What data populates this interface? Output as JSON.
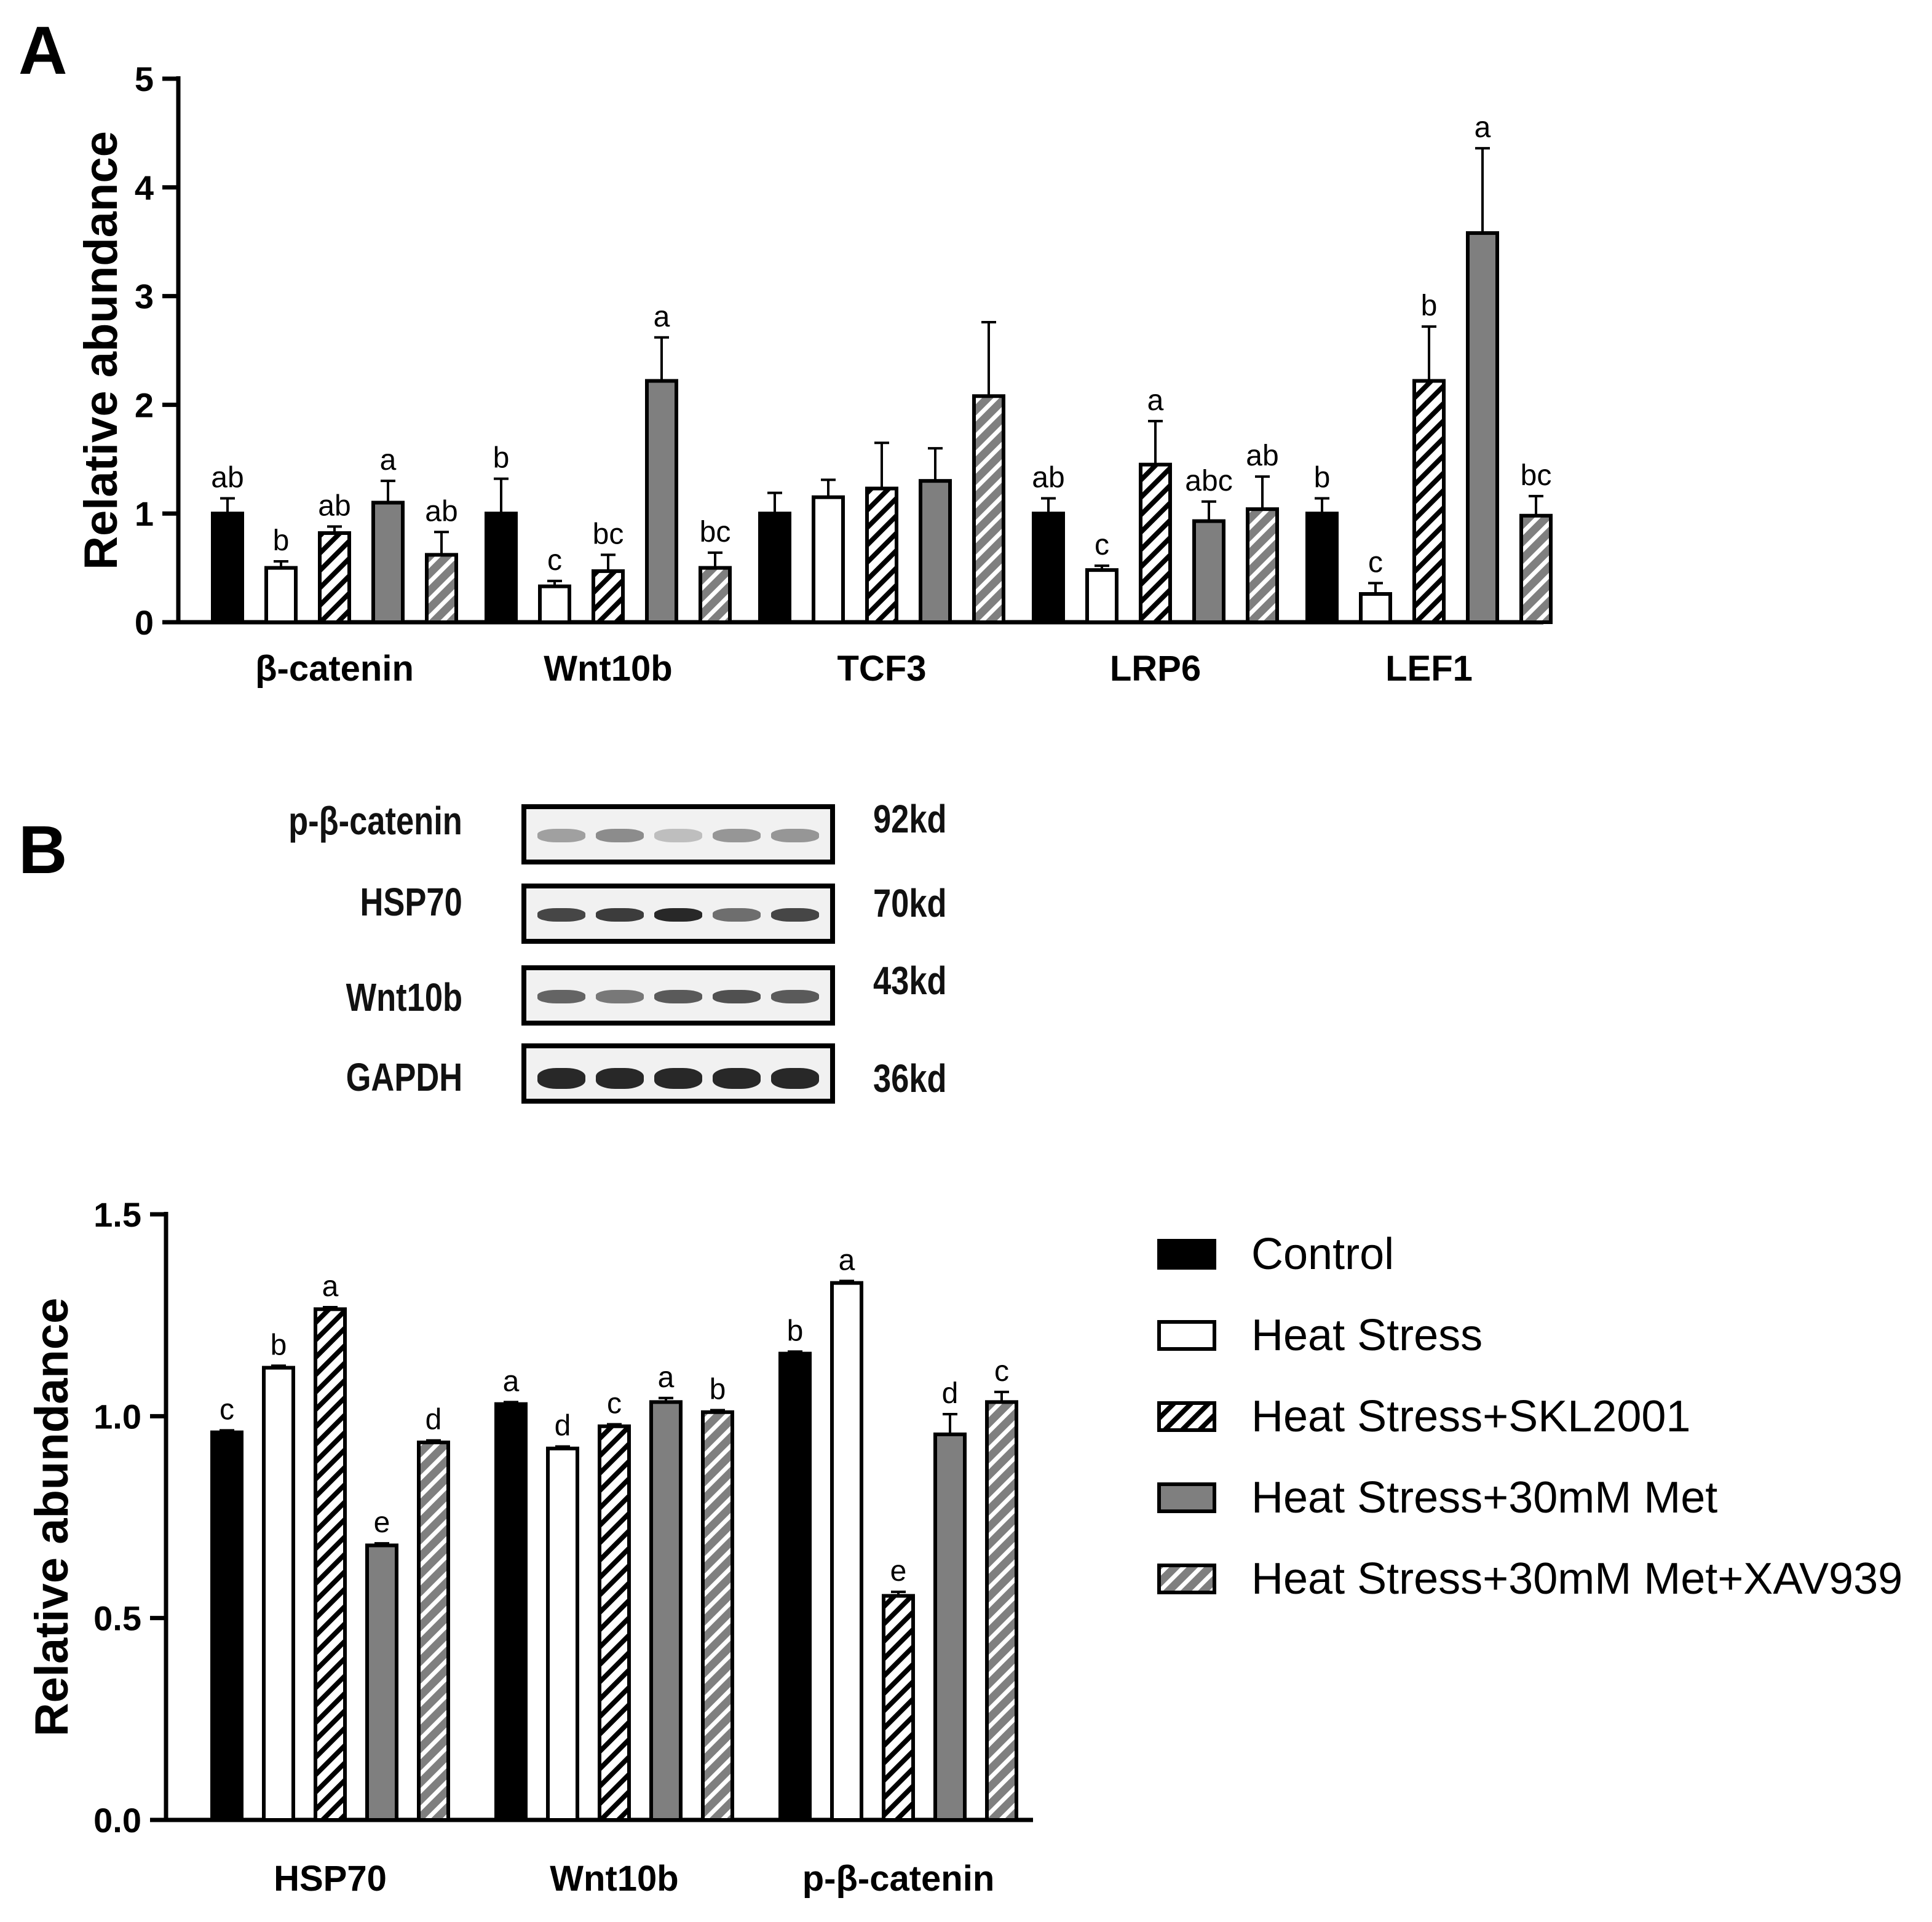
{
  "panel_labels": {
    "a": "A",
    "b": "B"
  },
  "colors": {
    "control": "#000000",
    "heat_stress": "#ffffff",
    "skl2001": "#ffffff",
    "met": "#7f7f7f",
    "xav939": "#7f7f7f",
    "hatch": "#000000",
    "hatch_light": "#ffffff"
  },
  "legend": {
    "items": [
      {
        "label": "Control",
        "style": "solid-black"
      },
      {
        "label": "Heat Stress",
        "style": "white"
      },
      {
        "label": "Heat Stress+SKL2001",
        "style": "hatch-white"
      },
      {
        "label": "Heat Stress+30mM Met",
        "style": "solid-gray"
      },
      {
        "label": "Heat Stress+30mM Met+XAV939",
        "style": "hatch-gray"
      }
    ]
  },
  "blot": {
    "rows": [
      {
        "label": "p-β-catenin",
        "kd": "92kd",
        "intensities": [
          0.35,
          0.45,
          0.2,
          0.4,
          0.4
        ]
      },
      {
        "label": "HSP70",
        "kd": "70kd",
        "intensities": [
          0.8,
          0.85,
          0.95,
          0.6,
          0.8
        ]
      },
      {
        "label": "Wnt10b",
        "kd": "43kd",
        "intensities": [
          0.65,
          0.55,
          0.7,
          0.75,
          0.7
        ]
      },
      {
        "label": "GAPDH",
        "kd": "36kd",
        "intensities": [
          0.95,
          0.95,
          0.95,
          0.95,
          0.95
        ]
      }
    ]
  },
  "chart_data": [
    {
      "panel": "A",
      "type": "bar",
      "title": "",
      "xlabel": "",
      "ylabel": "Relative abundance",
      "ylim": [
        0,
        5
      ],
      "yticks": [
        "0",
        "1",
        "2",
        "3",
        "4",
        "5"
      ],
      "categories": [
        "β-catenin",
        "Wnt10b",
        "TCF3",
        "LRP6",
        "LEF1"
      ],
      "series": [
        {
          "name": "Control",
          "values": [
            1.0,
            1.0,
            1.0,
            1.0,
            1.0
          ],
          "errors": [
            0.14,
            0.32,
            0.19,
            0.14,
            0.14
          ],
          "labels": [
            "ab",
            "b",
            "",
            "ab",
            "b"
          ]
        },
        {
          "name": "Heat Stress",
          "values": [
            0.5,
            0.33,
            1.15,
            0.48,
            0.26
          ],
          "errors": [
            0.06,
            0.05,
            0.16,
            0.04,
            0.1
          ],
          "labels": [
            "b",
            "c",
            "",
            "c",
            "c"
          ]
        },
        {
          "name": "Heat Stress+SKL2001",
          "values": [
            0.82,
            0.47,
            1.23,
            1.45,
            2.22
          ],
          "errors": [
            0.06,
            0.15,
            0.42,
            0.4,
            0.5
          ],
          "labels": [
            "ab",
            "bc",
            "",
            "a",
            "b"
          ]
        },
        {
          "name": "Heat Stress+30mM Met",
          "values": [
            1.1,
            2.22,
            1.3,
            0.93,
            3.58
          ],
          "errors": [
            0.2,
            0.4,
            0.3,
            0.18,
            0.78
          ],
          "labels": [
            "a",
            "a",
            "",
            "abc",
            "a"
          ]
        },
        {
          "name": "Heat Stress+30mM Met+XAV939",
          "values": [
            0.62,
            0.5,
            2.08,
            1.04,
            0.98
          ],
          "errors": [
            0.21,
            0.14,
            0.68,
            0.3,
            0.18
          ],
          "labels": [
            "ab",
            "bc",
            "",
            "ab",
            "bc"
          ]
        }
      ]
    },
    {
      "panel": "B",
      "type": "bar",
      "title": "",
      "xlabel": "",
      "ylabel": "Relative abundance",
      "ylim": [
        0,
        1.5
      ],
      "yticks": [
        "0.0",
        "0.5",
        "1.0",
        "1.5"
      ],
      "categories": [
        "HSP70",
        "Wnt10b",
        "p-β-catenin"
      ],
      "series": [
        {
          "name": "Control",
          "values": [
            0.96,
            1.03,
            1.155
          ],
          "errors": [
            0.005,
            0.005,
            0.005
          ],
          "labels": [
            "c",
            "a",
            "b"
          ]
        },
        {
          "name": "Heat Stress",
          "values": [
            1.12,
            0.92,
            1.33
          ],
          "errors": [
            0.005,
            0.005,
            0.005
          ],
          "labels": [
            "b",
            "d",
            "a"
          ]
        },
        {
          "name": "Heat Stress+SKL2001",
          "values": [
            1.265,
            0.975,
            0.555
          ],
          "errors": [
            0.005,
            0.005,
            0.01
          ],
          "labels": [
            "a",
            "c",
            "e"
          ]
        },
        {
          "name": "Heat Stress+30mM Met",
          "values": [
            0.68,
            1.035,
            0.955
          ],
          "errors": [
            0.005,
            0.01,
            0.05
          ],
          "labels": [
            "e",
            "a",
            "d"
          ]
        },
        {
          "name": "Heat Stress+30mM Met+XAV939",
          "values": [
            0.935,
            1.01,
            1.035
          ],
          "errors": [
            0.005,
            0.005,
            0.025
          ],
          "labels": [
            "d",
            "b",
            "c"
          ]
        }
      ]
    }
  ]
}
